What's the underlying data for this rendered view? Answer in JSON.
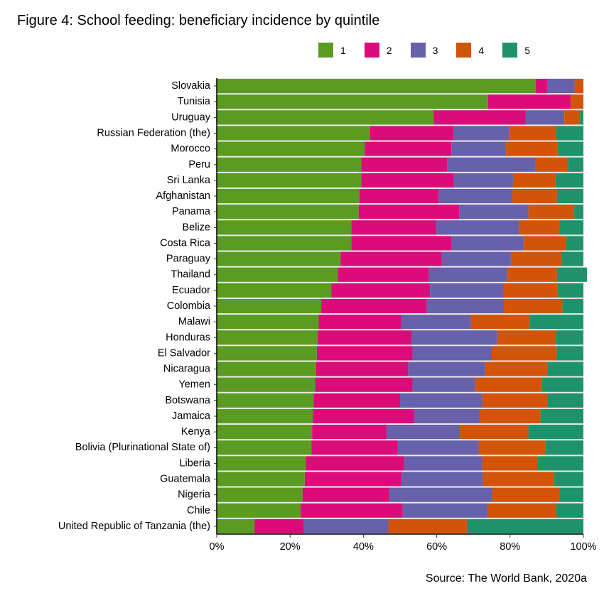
{
  "chart_data": {
    "type": "bar",
    "orientation": "horizontal",
    "stacked": true,
    "title": "Figure 4: School feeding: beneficiary incidence by quintile",
    "source": "Source: The World Bank, 2020a",
    "xlim": [
      0,
      100
    ],
    "x_ticks": [
      "0%",
      "20%",
      "40%",
      "60%",
      "80%",
      "100%"
    ],
    "legend_position": "top",
    "categories": [
      "Slovakia",
      "Tunisia",
      "Uruguay",
      "Russian Federation (the)",
      "Morocco",
      "Peru",
      "Sri Lanka",
      "Afghanistan",
      "Panama",
      "Belize",
      "Costa Rica",
      "Paraguay",
      "Thailand",
      "Ecuador",
      "Colombia",
      "Malawi",
      "Honduras",
      "El Salvador",
      "Nicaragua",
      "Yemen",
      "Botswana",
      "Jamaica",
      "Kenya",
      "Bolivia (Plurinational State of)",
      "Liberia",
      "Guatemala",
      "Nigeria",
      "Chile",
      "United Republic of Tanzania (the)"
    ],
    "series": [
      {
        "name": "1",
        "color": "#5a9c22",
        "values": [
          87.0,
          74.0,
          59.2,
          41.8,
          40.4,
          39.4,
          39.4,
          38.9,
          38.7,
          36.7,
          36.7,
          33.8,
          33.0,
          31.3,
          28.5,
          27.8,
          27.5,
          27.3,
          27.1,
          26.8,
          26.4,
          26.2,
          26.0,
          25.8,
          24.3,
          24.0,
          23.4,
          22.9,
          10.3
        ]
      },
      {
        "name": "2",
        "color": "#db0b7a",
        "values": [
          3.1,
          22.5,
          25.0,
          22.8,
          23.6,
          23.4,
          25.3,
          21.6,
          27.4,
          23.1,
          27.4,
          27.6,
          24.9,
          26.9,
          28.8,
          22.5,
          25.6,
          26.1,
          25.1,
          26.6,
          23.6,
          27.6,
          20.3,
          23.6,
          26.8,
          26.3,
          23.6,
          27.8,
          13.5
        ]
      },
      {
        "name": "3",
        "color": "#6760ab",
        "values": [
          7.5,
          0,
          10.6,
          15.1,
          14.9,
          24.2,
          16.1,
          20.1,
          18.9,
          22.6,
          19.6,
          18.8,
          21.3,
          20.0,
          21.0,
          19.0,
          23.4,
          21.6,
          21.0,
          17.1,
          22.4,
          17.9,
          20.0,
          22.0,
          21.3,
          22.3,
          28.1,
          23.3,
          23.0
        ]
      },
      {
        "name": "4",
        "color": "#d35408",
        "values": [
          2.4,
          3.5,
          4.3,
          12.9,
          14.1,
          8.8,
          11.6,
          12.2,
          12.5,
          11.1,
          11.6,
          13.8,
          13.6,
          14.8,
          16.0,
          16.0,
          16.0,
          17.7,
          17.0,
          18.2,
          17.8,
          16.6,
          18.7,
          18.2,
          15.2,
          19.4,
          18.4,
          18.6,
          21.4
        ]
      },
      {
        "name": "5",
        "color": "#1e936b",
        "values": [
          0,
          0,
          0.9,
          7.4,
          7.0,
          4.2,
          7.6,
          7.2,
          2.5,
          6.5,
          4.7,
          6.0,
          8.2,
          7.0,
          5.7,
          14.7,
          7.5,
          7.3,
          9.8,
          11.3,
          9.8,
          11.7,
          15.0,
          10.4,
          12.4,
          8.0,
          6.5,
          7.4,
          31.8
        ]
      }
    ]
  }
}
